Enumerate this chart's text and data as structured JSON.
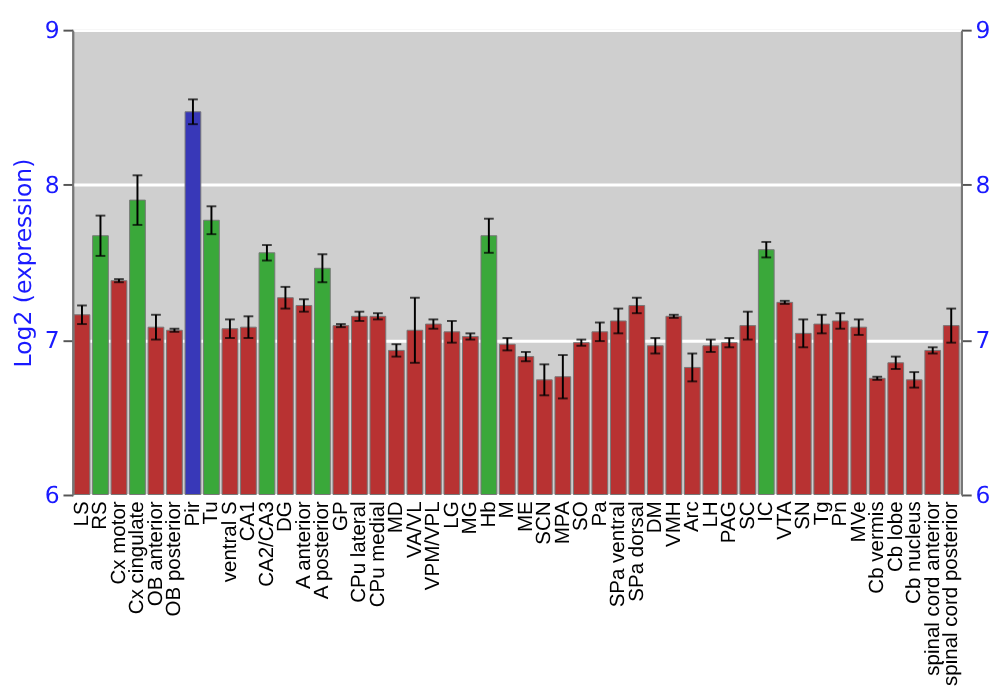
{
  "chart_data": {
    "type": "bar",
    "ylabel": "Log2 (expression)",
    "categories": [
      "LS",
      "RS",
      "Cx motor",
      "Cx cingulate",
      "OB anterior",
      "OB posterior",
      "Pir",
      "Tu",
      "ventral S",
      "CA1",
      "CA2/CA3",
      "DG",
      "A anterior",
      "A posterior",
      "GP",
      "CPu lateral",
      "CPu medial",
      "MD",
      "VA/VL",
      "VPM/VPL",
      "LG",
      "MG",
      "Hb",
      "M",
      "ME",
      "SCN",
      "MPA",
      "SO",
      "Pa",
      "SPa ventral",
      "SPa dorsal",
      "DM",
      "VMH",
      "Arc",
      "LH",
      "PAG",
      "SC",
      "IC",
      "VTA",
      "SN",
      "Tg",
      "Pn",
      "MVe",
      "Cb vermis",
      "Cb lobe",
      "Cb nucleus",
      "spinal cord anterior",
      "spinal cord posterior"
    ],
    "values": [
      7.16,
      7.67,
      7.38,
      7.9,
      7.08,
      7.06,
      8.47,
      7.77,
      7.07,
      7.08,
      7.56,
      7.27,
      7.22,
      7.46,
      7.09,
      7.15,
      7.15,
      6.93,
      7.06,
      7.1,
      7.05,
      7.02,
      7.67,
      6.97,
      6.89,
      6.74,
      6.76,
      6.98,
      7.05,
      7.12,
      7.22,
      6.96,
      7.15,
      6.82,
      6.96,
      6.98,
      7.09,
      7.58,
      7.24,
      7.04,
      7.1,
      7.12,
      7.08,
      6.75,
      6.85,
      6.74,
      6.93,
      7.09
    ],
    "errors": [
      0.06,
      0.13,
      0.01,
      0.16,
      0.08,
      0.01,
      0.08,
      0.09,
      0.06,
      0.07,
      0.05,
      0.07,
      0.04,
      0.09,
      0.01,
      0.03,
      0.02,
      0.04,
      0.21,
      0.03,
      0.07,
      0.02,
      0.11,
      0.04,
      0.03,
      0.1,
      0.14,
      0.02,
      0.06,
      0.08,
      0.05,
      0.05,
      0.01,
      0.09,
      0.04,
      0.03,
      0.09,
      0.05,
      0.01,
      0.09,
      0.06,
      0.05,
      0.05,
      0.01,
      0.04,
      0.05,
      0.02,
      0.11
    ],
    "colors": [
      "#b83232",
      "#3aa83a",
      "#b83232",
      "#3aa83a",
      "#b83232",
      "#b83232",
      "#3838b8",
      "#3aa83a",
      "#b83232",
      "#b83232",
      "#3aa83a",
      "#b83232",
      "#b83232",
      "#3aa83a",
      "#b83232",
      "#b83232",
      "#b83232",
      "#b83232",
      "#b83232",
      "#b83232",
      "#b83232",
      "#b83232",
      "#3aa83a",
      "#b83232",
      "#b83232",
      "#b83232",
      "#b83232",
      "#b83232",
      "#b83232",
      "#b83232",
      "#b83232",
      "#b83232",
      "#b83232",
      "#b83232",
      "#b83232",
      "#b83232",
      "#b83232",
      "#3aa83a",
      "#b83232",
      "#b83232",
      "#b83232",
      "#b83232",
      "#b83232",
      "#b83232",
      "#b83232",
      "#b83232",
      "#b83232",
      "#b83232"
    ],
    "ylim": [
      6,
      9
    ],
    "yticks": [
      6,
      7,
      8,
      9
    ],
    "y2lim": [
      6,
      9
    ],
    "y2ticks": [
      6,
      7,
      8,
      9
    ],
    "grid": "y"
  }
}
